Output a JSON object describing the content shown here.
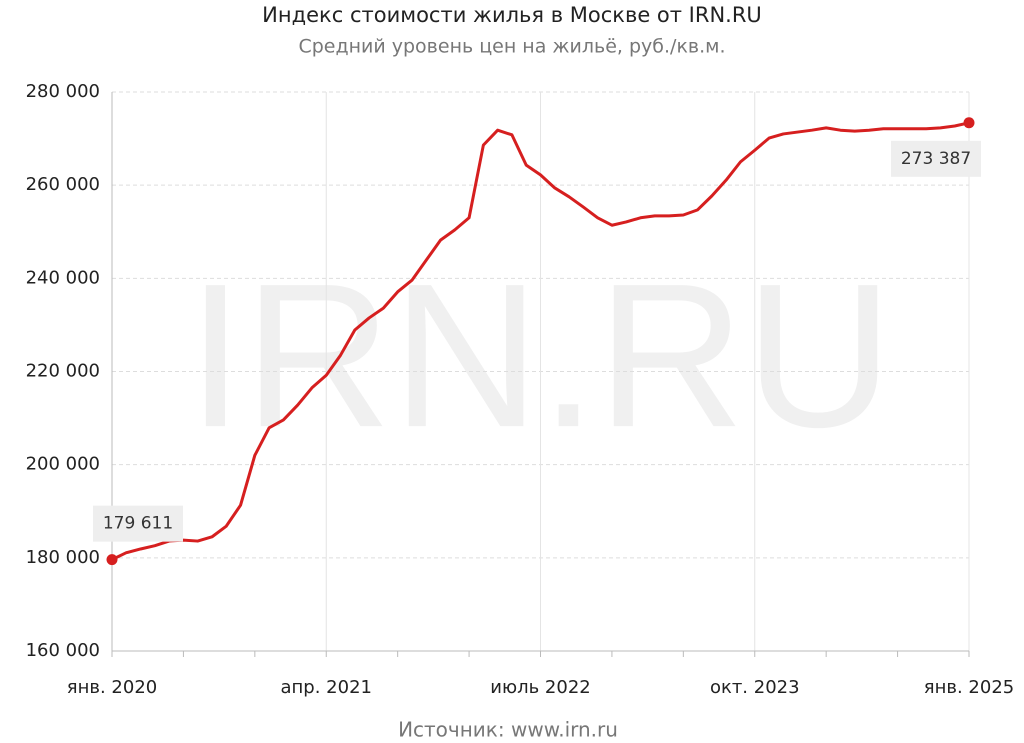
{
  "chart_data": {
    "type": "line",
    "title": "Индекс стоимости жилья в Москве от IRN.RU",
    "subtitle": "Средний уровень цен на жильё, руб./кв.м.",
    "source": "Источник: www.irn.ru",
    "watermark": "IRN.RU",
    "categories": [
      "янв. 2020",
      null,
      null,
      null,
      null,
      null,
      null,
      null,
      null,
      null,
      null,
      null,
      null,
      null,
      null,
      "апр. 2021",
      null,
      null,
      null,
      null,
      null,
      null,
      null,
      null,
      null,
      null,
      null,
      null,
      null,
      null,
      "июль 2022",
      null,
      null,
      null,
      null,
      null,
      null,
      null,
      null,
      null,
      null,
      null,
      null,
      null,
      null,
      "окт. 2023",
      null,
      null,
      null,
      null,
      null,
      null,
      null,
      null,
      null,
      null,
      null,
      null,
      null,
      null,
      "янв. 2025"
    ],
    "values": [
      179611,
      181100,
      181900,
      182600,
      183600,
      183800,
      183600,
      184500,
      186800,
      191300,
      202000,
      207900,
      209600,
      212800,
      216500,
      219200,
      223500,
      228900,
      231500,
      233600,
      237100,
      239600,
      243900,
      248200,
      250400,
      253000,
      268600,
      271800,
      270800,
      264300,
      262200,
      259400,
      257500,
      255300,
      253000,
      251400,
      252100,
      253000,
      253400,
      253400,
      253600,
      254700,
      257700,
      261100,
      265000,
      267500,
      270100,
      271000,
      271400,
      271800,
      272300,
      271800,
      271600,
      271800,
      272100,
      272100,
      272100,
      272100,
      272300,
      272700,
      273387
    ],
    "value_labels": [
      "179 611",
      null,
      null,
      null,
      null,
      null,
      null,
      null,
      null,
      null,
      null,
      null,
      null,
      null,
      null,
      null,
      null,
      null,
      null,
      null,
      null,
      null,
      null,
      null,
      null,
      null,
      null,
      null,
      null,
      null,
      null,
      null,
      null,
      null,
      null,
      null,
      null,
      null,
      null,
      null,
      null,
      null,
      null,
      null,
      null,
      null,
      null,
      null,
      null,
      null,
      null,
      null,
      null,
      null,
      null,
      null,
      null,
      null,
      null,
      null,
      "273 387"
    ],
    "color": "#d61f1f",
    "ylim": [
      160000,
      280000
    ],
    "yticks": [
      {
        "value": 160000,
        "label": "160 000"
      },
      {
        "value": 180000,
        "label": "180 000"
      },
      {
        "value": 200000,
        "label": "200 000"
      },
      {
        "value": 220000,
        "label": "220 000"
      },
      {
        "value": 240000,
        "label": "240 000"
      },
      {
        "value": 260000,
        "label": "260 000"
      },
      {
        "value": 280000,
        "label": "280 000"
      }
    ],
    "grid": true
  }
}
